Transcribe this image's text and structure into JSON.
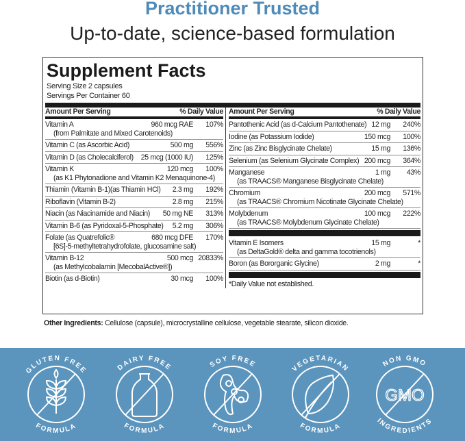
{
  "header": {
    "title": "Practitioner Trusted",
    "subtitle": "Up-to-date, science-based formulation"
  },
  "facts": {
    "title": "Supplement Facts",
    "serving_size": "Serving Size 2 capsules",
    "servings_per_container": "Servings Per Container 60",
    "col_amount": "Amount Per Serving",
    "col_dv": "% Daily Value",
    "left": [
      {
        "name": "Vitamin A",
        "amount": "960 mcg RAE",
        "dv": "107%",
        "sub": "(from Palmitate and Mixed Carotenoids)"
      },
      {
        "name": "Vitamin C (as Ascorbic Acid)",
        "amount": "500 mg",
        "dv": "556%"
      },
      {
        "name": "Vitamin D (as Cholecalciferol)",
        "amount": "25 mcg (1000 IU)",
        "dv": "125%"
      },
      {
        "name": "Vitamin K",
        "amount": "120 mcg",
        "dv": "100%",
        "sub": "(as K1 Phytonadione and Vitamin K2 Menaquinone-4)"
      },
      {
        "name": "Thiamin (Vitamin B-1)(as Thiamin HCl)",
        "amount": "2.3 mg",
        "dv": "192%"
      },
      {
        "name": "Riboflavin (Vitamin B-2)",
        "amount": "2.8 mg",
        "dv": "215%"
      },
      {
        "name": "Niacin (as Niacinamide and Niacin)",
        "amount": "50 mg NE",
        "dv": "313%"
      },
      {
        "name": "Vitamin B-6 (as Pyridoxal-5-Phosphate)",
        "amount": "5.2 mg",
        "dv": "306%"
      },
      {
        "name": "Folate (as Quatrefolic®",
        "amount": "680 mcg DFE",
        "dv": "170%",
        "sub": "[6S]-5-methyltetrahydrofolate, glucosamine salt)"
      },
      {
        "name": "Vitamin B-12",
        "amount": "500 mcg",
        "dv": "20833%",
        "sub": "(as Methylcobalamin [MecobalActive®])"
      },
      {
        "name": "Biotin (as d-Biotin)",
        "amount": "30 mcg",
        "dv": "100%"
      }
    ],
    "right": [
      {
        "name": "Pantothenic Acid (as d-Calcium Pantothenate)",
        "amount": "12 mg",
        "dv": "240%"
      },
      {
        "name": "Iodine (as Potassium Iodide)",
        "amount": "150 mcg",
        "dv": "100%"
      },
      {
        "name": "Zinc (as Zinc Bisglycinate Chelate)",
        "amount": "15 mg",
        "dv": "136%"
      },
      {
        "name": "Selenium (as Selenium Glycinate Complex)",
        "amount": "200 mcg",
        "dv": "364%"
      },
      {
        "name": "Manganese",
        "amount": "1 mg",
        "dv": "43%",
        "sub": "(as TRAACS® Manganese Bisglycinate Chelate)"
      },
      {
        "name": "Chromium",
        "amount": "200 mcg",
        "dv": "571%",
        "sub": "(as TRAACS® Chromium Nicotinate Glycinate Chelate)"
      },
      {
        "name": "Molybdenum",
        "amount": "100 mcg",
        "dv": "222%",
        "sub": "(as TRAACS® Molybdenum Glycinate Chelate)"
      }
    ],
    "right2": [
      {
        "name": "Vitamin E Isomers",
        "amount": "15 mg",
        "dv": "*",
        "sub": "(as DeltaGold® delta and gamma tocotrienols)"
      },
      {
        "name": "Boron (as Bororganic Glycine)",
        "amount": "2 mg",
        "dv": "*"
      }
    ],
    "footnote": "*Daily Value not established."
  },
  "other": {
    "label": "Other Ingredients:",
    "text": " Cellulose (capsule), microcrystalline cellulose, vegetable stearate, silicon dioxide."
  },
  "badges": [
    {
      "top": "GLUTEN FREE",
      "bottom": "FORMULA",
      "icon": "wheat-icon"
    },
    {
      "top": "DAIRY FREE",
      "bottom": "FORMULA",
      "icon": "bottle-icon"
    },
    {
      "top": "SOY FREE",
      "bottom": "FORMULA",
      "icon": "soybean-icon"
    },
    {
      "top": "VEGETARIAN",
      "bottom": "FORMULA",
      "icon": "leaf-icon"
    },
    {
      "top": "NON GMO",
      "bottom": "INGREDIENTS",
      "icon": "gmo-icon",
      "center": "GMO"
    }
  ],
  "colors": {
    "title": "#4f8bb8",
    "band": "#5b94bd"
  }
}
